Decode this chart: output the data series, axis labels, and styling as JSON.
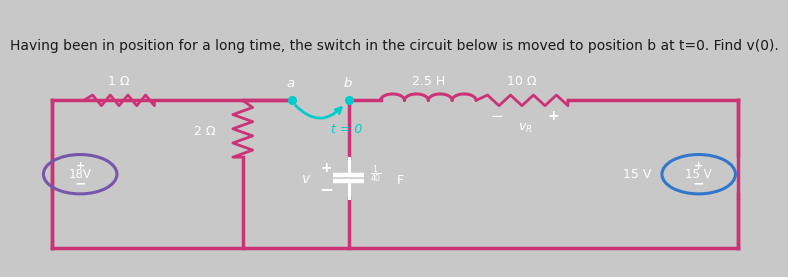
{
  "title": "Having been in position for a long time, the switch in the circuit below is moved to position b at t=0. Find v(0).",
  "title_fontsize": 10,
  "bg_color": "#0d0d0d",
  "outer_bg": "#c8c8c8",
  "wire_color": "#cc3377",
  "resistor_pink_color": "#cc3377",
  "inductor_color": "#cc3377",
  "resistor10_color": "#cc3377",
  "switch_color": "#00cccc",
  "capacitor_color": "#ffffff",
  "source18_color": "#7755aa",
  "source15_color": "#3377cc",
  "label_color": "#ffffff",
  "label_1ohm": "1 Ω",
  "label_2ohm": "2 Ω",
  "label_10ohm": "10 Ω",
  "label_25H": "2.5 H",
  "label_18V": "18V",
  "label_15V": "15 V",
  "label_t0": "t = 0",
  "label_a": "a",
  "label_b": "b"
}
